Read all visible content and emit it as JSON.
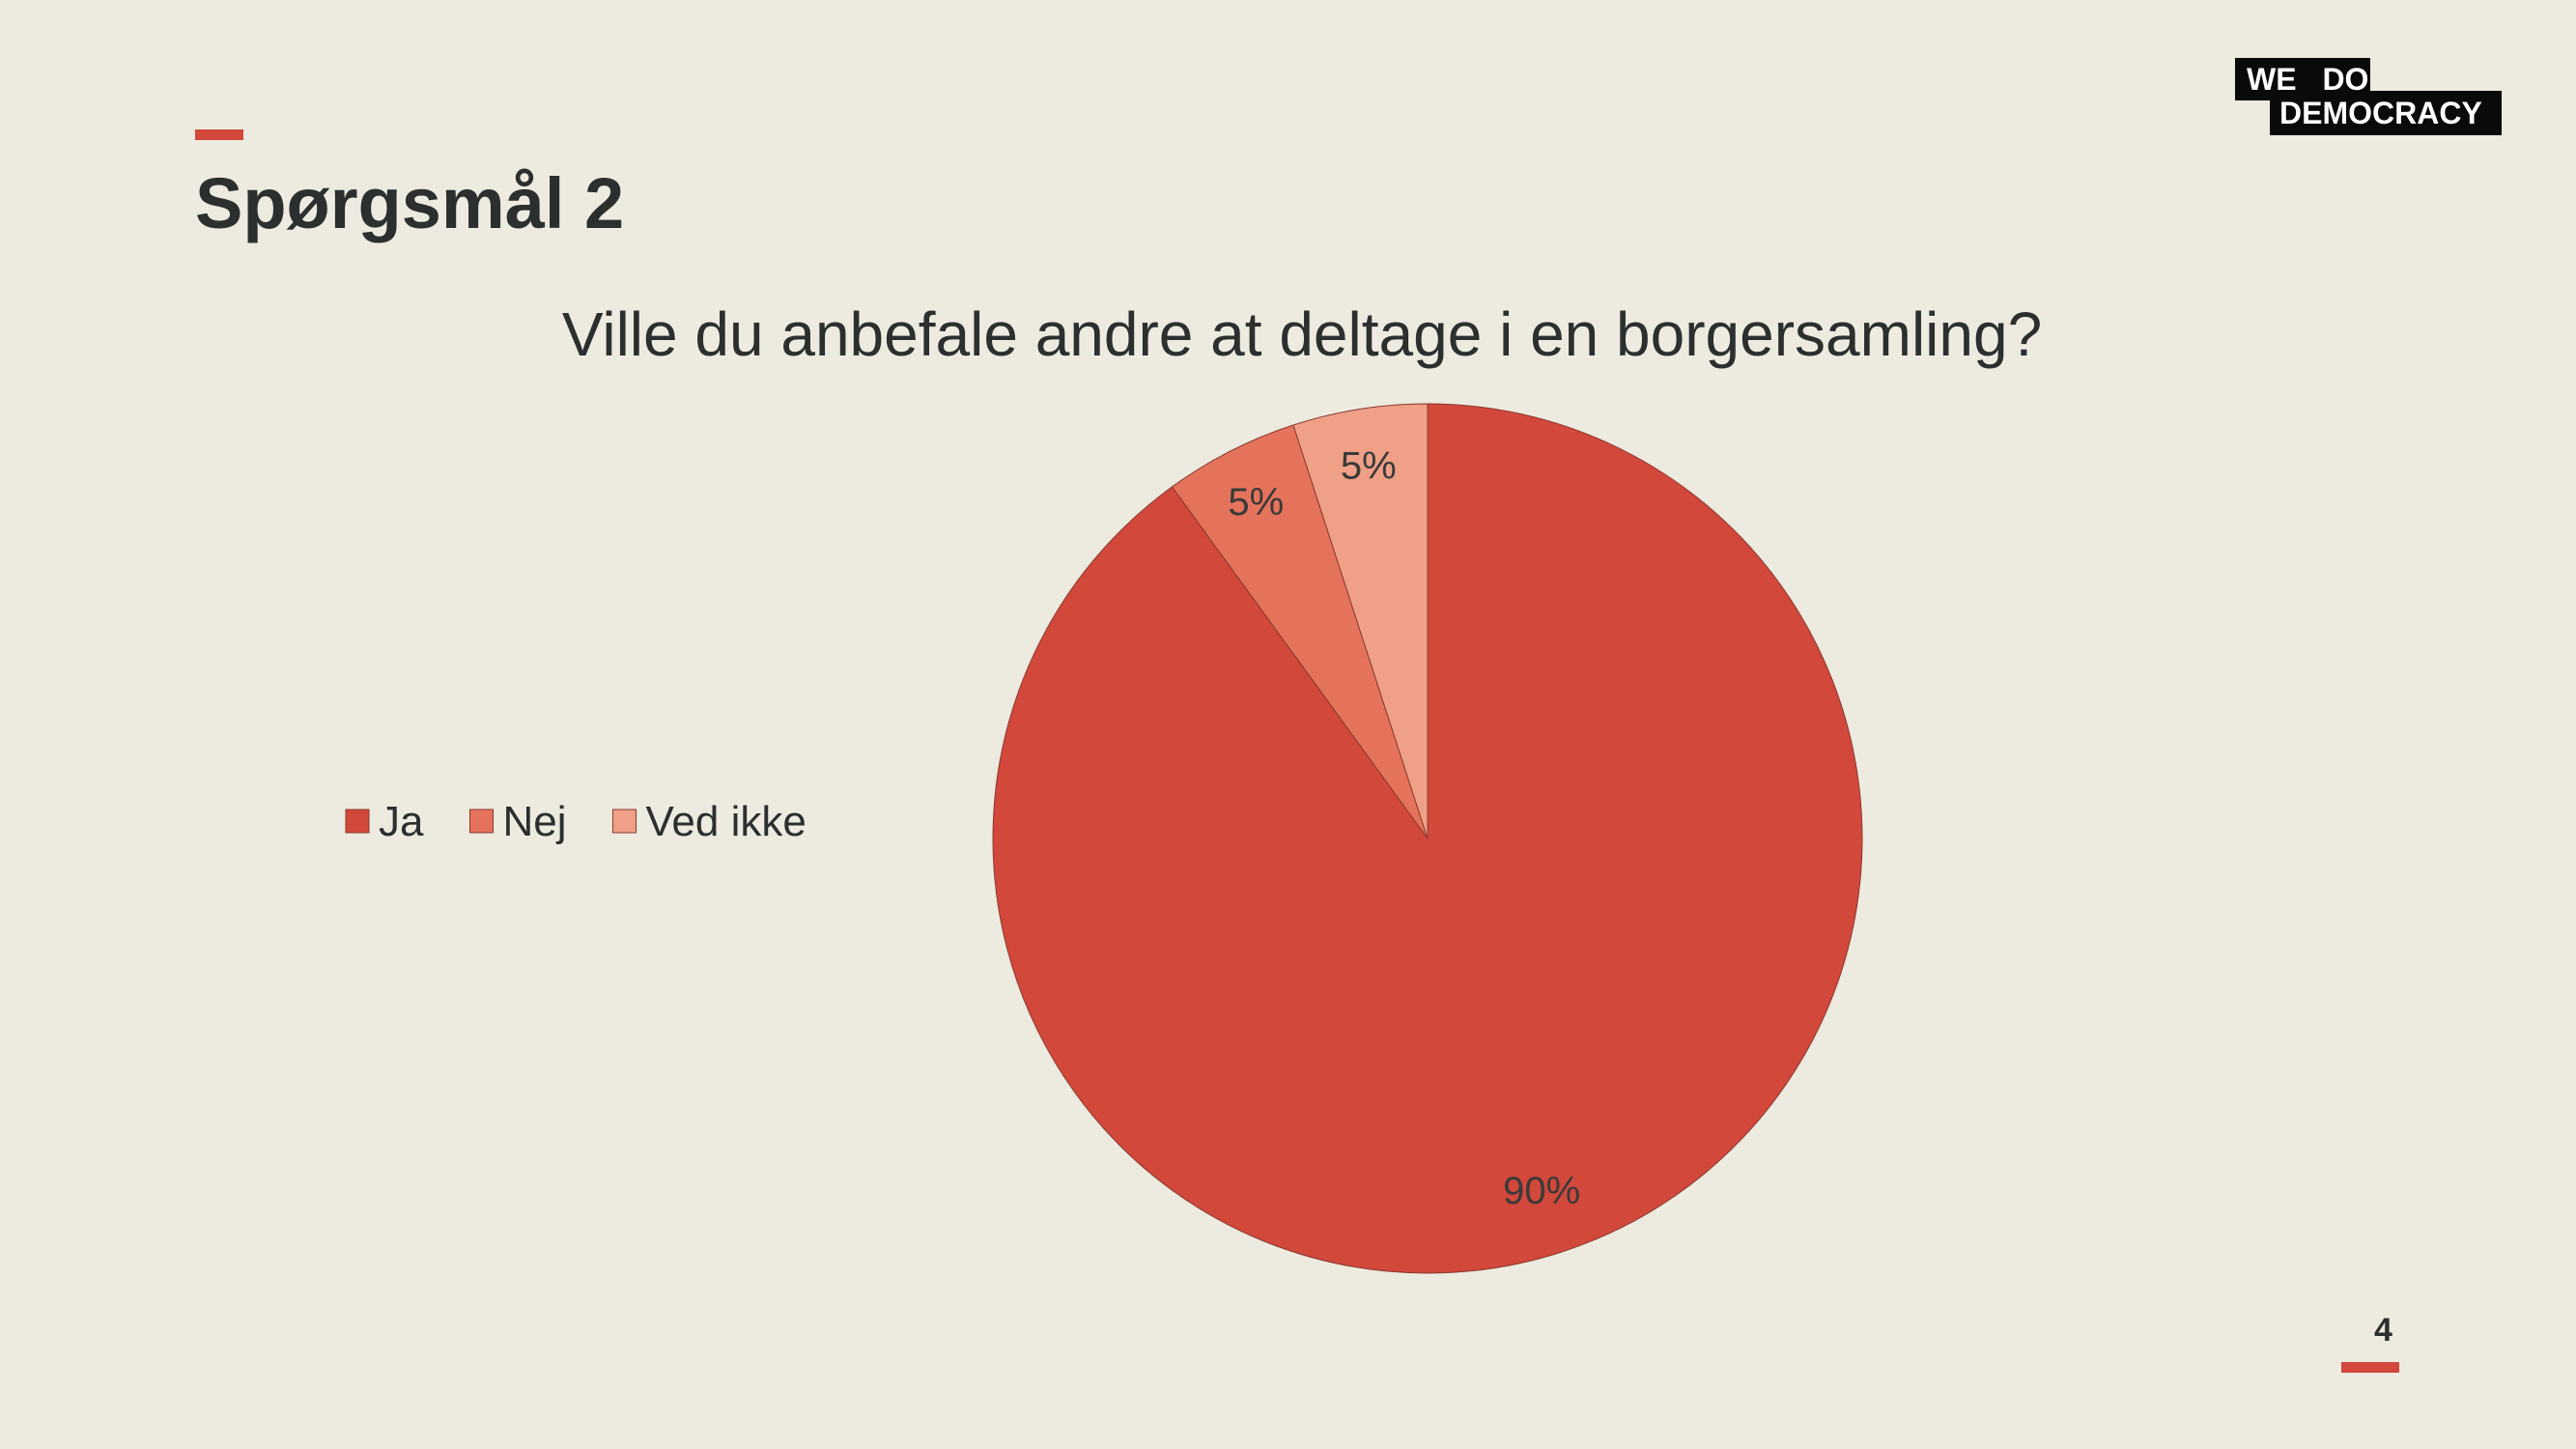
{
  "slide": {
    "title": "Spørgsmål 2",
    "page_number": "4"
  },
  "logo": {
    "line1": "WE DO",
    "line2": "DEMOCRACY"
  },
  "colors": {
    "background": "#EDEADF",
    "accent": "#D2483B"
  },
  "chart_data": {
    "type": "pie",
    "title": "Ville du anbefale andre at deltage i en borgersamling?",
    "legend_position": "left",
    "slices": [
      {
        "label": "Ja",
        "value": 90,
        "data_label": "90%",
        "color": "#D2483B"
      },
      {
        "label": "Nej",
        "value": 5,
        "data_label": "5%",
        "color": "#E5735B"
      },
      {
        "label": "Ved ikke",
        "value": 5,
        "data_label": "5%",
        "color": "#EFA086"
      }
    ]
  }
}
